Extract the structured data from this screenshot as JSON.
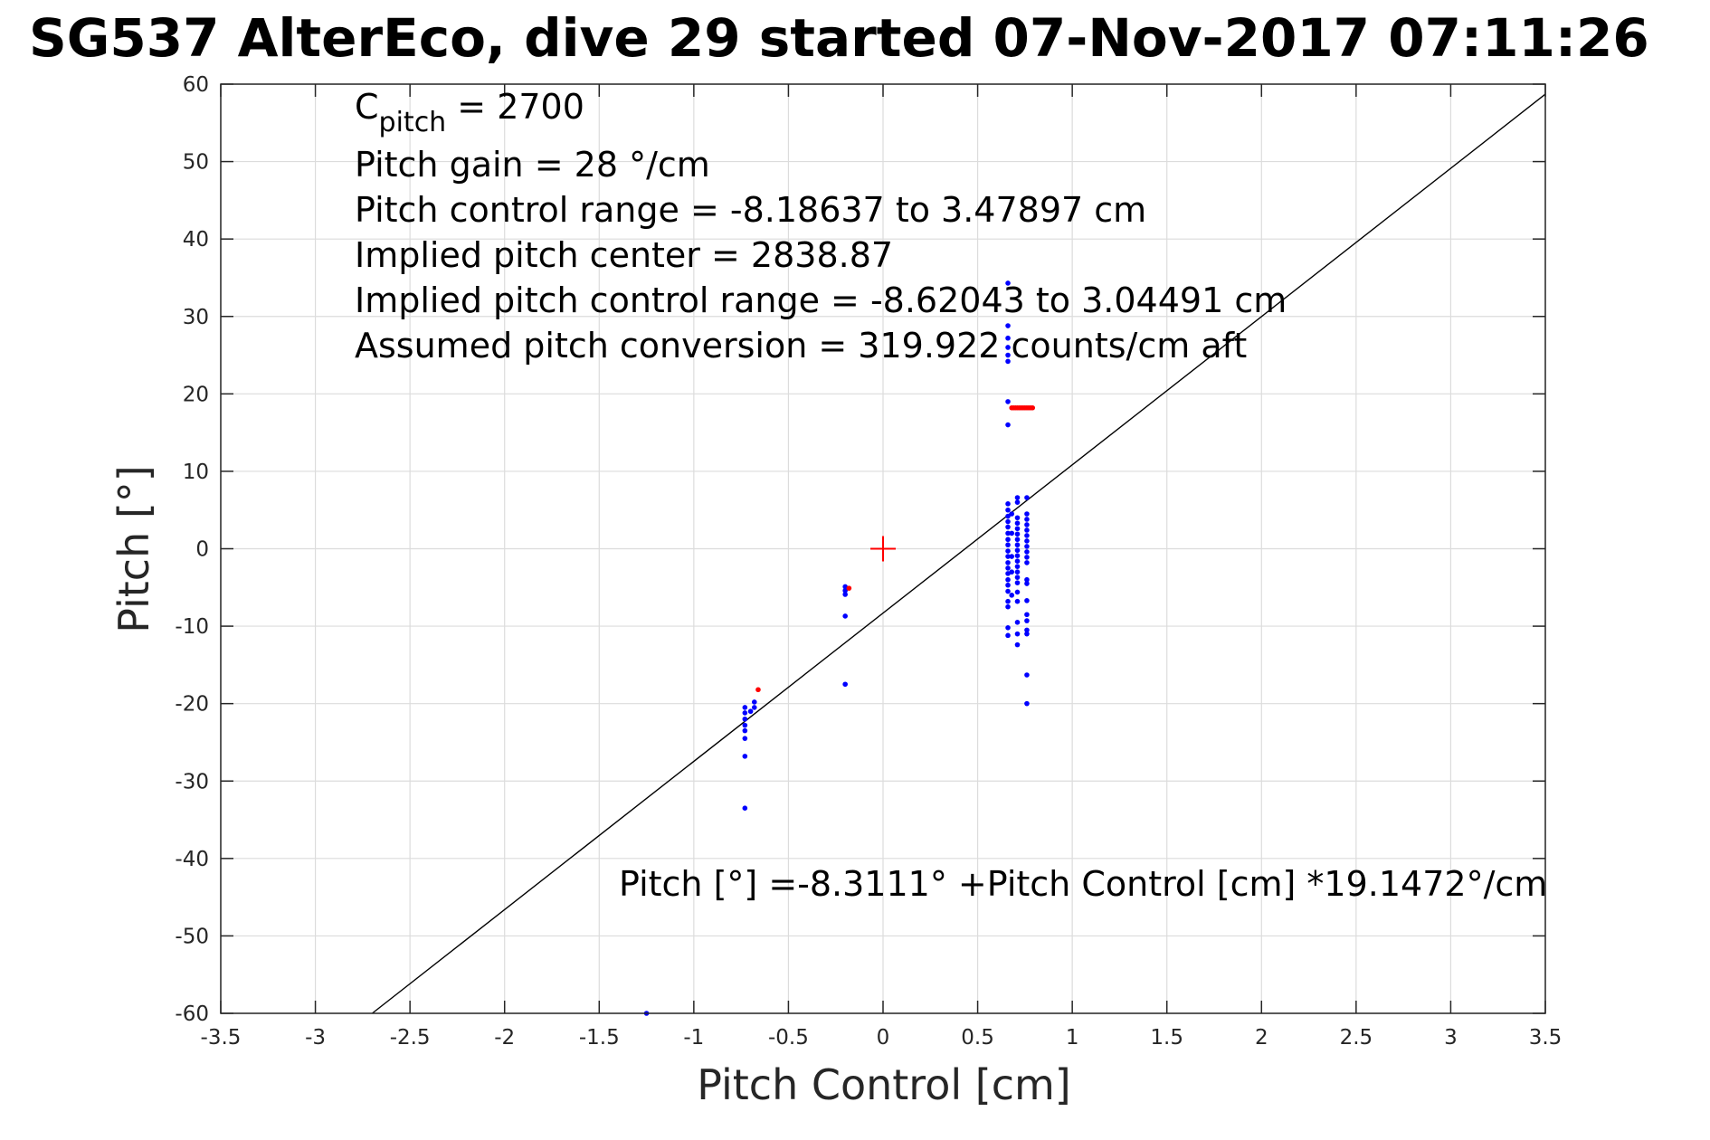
{
  "chart_data": {
    "type": "scatter",
    "title": "SG537 AlterEco, dive 29 started 07-Nov-2017 07:11:26",
    "xlabel": "Pitch Control [cm]",
    "ylabel": "Pitch [°]",
    "xlim": [
      -3.5,
      3.5
    ],
    "ylim": [
      -60,
      60
    ],
    "xticks": [
      -3.5,
      -3,
      -2.5,
      -2,
      -1.5,
      -1,
      -0.5,
      0,
      0.5,
      1,
      1.5,
      2,
      2.5,
      3,
      3.5
    ],
    "yticks": [
      -60,
      -50,
      -40,
      -30,
      -20,
      -10,
      0,
      10,
      20,
      30,
      40,
      50,
      60
    ],
    "xtick_labels": [
      "-3.5",
      "-3",
      "-2.5",
      "-2",
      "-1.5",
      "-1",
      "-0.5",
      "0",
      "0.5",
      "1",
      "1.5",
      "2",
      "2.5",
      "3",
      "3.5"
    ],
    "ytick_labels": [
      "-60",
      "-50",
      "-40",
      "-30",
      "-20",
      "-10",
      "0",
      "10",
      "20",
      "30",
      "40",
      "50",
      "60"
    ],
    "grid": true,
    "fit_line": {
      "intercept": -8.3111,
      "slope": 19.1472,
      "color": "#000000"
    },
    "center_marker": {
      "x": 0,
      "y": 0,
      "color": "#ff0000"
    },
    "annotations": {
      "c_pitch_main": "C",
      "c_pitch_sub": "pitch",
      "c_pitch_value": " = 2700",
      "pitch_gain": "Pitch gain = 28 °/cm",
      "pitch_control_range": "Pitch control range = -8.18637 to 3.47897 cm",
      "implied_center": "Implied pitch center = 2838.87",
      "implied_range": "Implied pitch control range = -8.62043 to 3.04491 cm",
      "assumed_conversion": "Assumed pitch conversion = 319.922 counts/cm aft",
      "fit_equation": "Pitch [°] =-8.3111° +Pitch Control [cm] *19.1472°/cm"
    },
    "series": [
      {
        "color": "#0000ff",
        "points": [
          [
            -1.25,
            -60
          ],
          [
            -0.73,
            -33.5
          ],
          [
            -0.73,
            -26.8
          ],
          [
            -0.73,
            -24.5
          ],
          [
            -0.73,
            -23.5
          ],
          [
            -0.73,
            -22.8
          ],
          [
            -0.73,
            -22
          ],
          [
            -0.73,
            -21.2
          ],
          [
            -0.73,
            -20.5
          ],
          [
            -0.7,
            -21
          ],
          [
            -0.68,
            -20.5
          ],
          [
            -0.68,
            -19.8
          ],
          [
            -0.2,
            -17.5
          ],
          [
            -0.2,
            -8.7
          ],
          [
            -0.2,
            -5.9
          ],
          [
            -0.2,
            -5.4
          ],
          [
            -0.2,
            -4.9
          ],
          [
            0.66,
            34.3
          ],
          [
            0.66,
            28.8
          ],
          [
            0.66,
            27.2
          ],
          [
            0.66,
            26
          ],
          [
            0.66,
            25
          ],
          [
            0.66,
            24.2
          ],
          [
            0.66,
            19
          ],
          [
            0.66,
            16
          ],
          [
            0.66,
            5.8
          ],
          [
            0.66,
            5
          ],
          [
            0.66,
            4.2
          ],
          [
            0.66,
            3.5
          ],
          [
            0.66,
            2.8
          ],
          [
            0.66,
            2
          ],
          [
            0.66,
            1.2
          ],
          [
            0.66,
            0.5
          ],
          [
            0.66,
            -0.3
          ],
          [
            0.66,
            -1
          ],
          [
            0.66,
            -1.8
          ],
          [
            0.66,
            -2.5
          ],
          [
            0.66,
            -3.2
          ],
          [
            0.66,
            -4
          ],
          [
            0.66,
            -4.7
          ],
          [
            0.66,
            -5.5
          ],
          [
            0.66,
            -6.8
          ],
          [
            0.66,
            -7.5
          ],
          [
            0.66,
            -10.2
          ],
          [
            0.66,
            -11.2
          ],
          [
            0.68,
            4.5
          ],
          [
            0.68,
            2
          ],
          [
            0.68,
            -1
          ],
          [
            0.68,
            -3
          ],
          [
            0.68,
            -6
          ],
          [
            0.71,
            6.6
          ],
          [
            0.71,
            6
          ],
          [
            0.71,
            4
          ],
          [
            0.71,
            3.3
          ],
          [
            0.71,
            2.6
          ],
          [
            0.71,
            1.9
          ],
          [
            0.71,
            1.2
          ],
          [
            0.71,
            0.5
          ],
          [
            0.71,
            -0.2
          ],
          [
            0.71,
            -0.9
          ],
          [
            0.71,
            -1.6
          ],
          [
            0.71,
            -2.3
          ],
          [
            0.71,
            -3
          ],
          [
            0.71,
            -3.7
          ],
          [
            0.71,
            -4.4
          ],
          [
            0.71,
            -5.6
          ],
          [
            0.71,
            -6.8
          ],
          [
            0.71,
            -9.5
          ],
          [
            0.71,
            -11
          ],
          [
            0.71,
            -12.4
          ],
          [
            0.76,
            6.6
          ],
          [
            0.76,
            4.5
          ],
          [
            0.76,
            3.8
          ],
          [
            0.76,
            3.1
          ],
          [
            0.76,
            2.4
          ],
          [
            0.76,
            1.7
          ],
          [
            0.76,
            1
          ],
          [
            0.76,
            0.3
          ],
          [
            0.76,
            -0.4
          ],
          [
            0.76,
            -1.1
          ],
          [
            0.76,
            -1.8
          ],
          [
            0.76,
            -4
          ],
          [
            0.76,
            -4.5
          ],
          [
            0.76,
            -6.7
          ],
          [
            0.76,
            -8.5
          ],
          [
            0.76,
            -9.3
          ],
          [
            0.76,
            -10.5
          ],
          [
            0.76,
            -11
          ],
          [
            0.76,
            -16.3
          ],
          [
            0.76,
            -20
          ]
        ]
      },
      {
        "color": "#ff0000",
        "points": [
          [
            -0.66,
            -18.2
          ],
          [
            -0.18,
            -5.1
          ],
          [
            0.68,
            18.2
          ],
          [
            0.69,
            18.2
          ],
          [
            0.7,
            18.2
          ],
          [
            0.71,
            18.2
          ],
          [
            0.72,
            18.2
          ],
          [
            0.73,
            18.2
          ],
          [
            0.74,
            18.2
          ],
          [
            0.75,
            18.2
          ],
          [
            0.76,
            18.2
          ],
          [
            0.77,
            18.2
          ],
          [
            0.78,
            18.2
          ],
          [
            0.79,
            18.2
          ]
        ]
      }
    ]
  }
}
